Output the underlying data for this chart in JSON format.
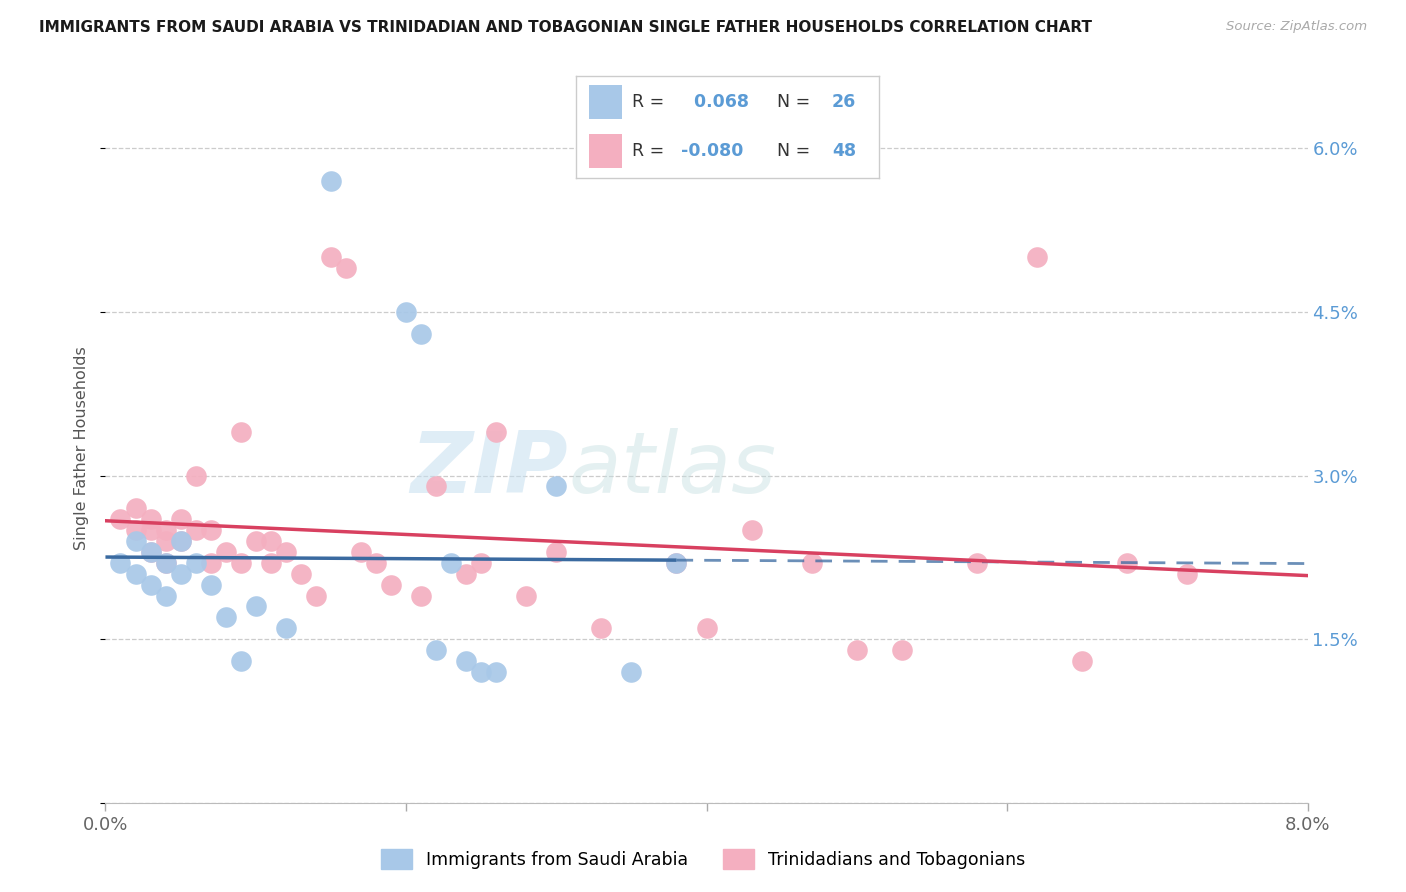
{
  "title": "IMMIGRANTS FROM SAUDI ARABIA VS TRINIDADIAN AND TOBAGONIAN SINGLE FATHER HOUSEHOLDS CORRELATION CHART",
  "source": "Source: ZipAtlas.com",
  "ylabel": "Single Father Households",
  "xlim": [
    0.0,
    0.08
  ],
  "ylim": [
    0.0,
    0.065
  ],
  "yticks": [
    0.0,
    0.015,
    0.03,
    0.045,
    0.06
  ],
  "ytick_labels": [
    "",
    "1.5%",
    "3.0%",
    "4.5%",
    "6.0%"
  ],
  "xticks": [
    0.0,
    0.02,
    0.04,
    0.06,
    0.08
  ],
  "xtick_labels": [
    "0.0%",
    "",
    "",
    "",
    "8.0%"
  ],
  "saudi_color": "#a8c8e8",
  "tnt_color": "#f4afc0",
  "saudi_line_color": "#3a6aa0",
  "tnt_line_color": "#d84060",
  "right_axis_color": "#5b9bd5",
  "saudi_R": "0.068",
  "saudi_N": "26",
  "tnt_R": "-0.080",
  "tnt_N": "48",
  "saudi_x": [
    0.001,
    0.002,
    0.002,
    0.003,
    0.003,
    0.004,
    0.004,
    0.005,
    0.005,
    0.006,
    0.007,
    0.008,
    0.009,
    0.01,
    0.012,
    0.015,
    0.02,
    0.021,
    0.022,
    0.023,
    0.024,
    0.025,
    0.026,
    0.03,
    0.035,
    0.038
  ],
  "saudi_y": [
    0.022,
    0.024,
    0.021,
    0.023,
    0.02,
    0.022,
    0.019,
    0.024,
    0.021,
    0.022,
    0.02,
    0.017,
    0.013,
    0.018,
    0.016,
    0.057,
    0.045,
    0.043,
    0.014,
    0.022,
    0.013,
    0.012,
    0.012,
    0.029,
    0.012,
    0.022
  ],
  "tnt_x": [
    0.001,
    0.002,
    0.002,
    0.003,
    0.003,
    0.003,
    0.004,
    0.004,
    0.004,
    0.005,
    0.005,
    0.006,
    0.006,
    0.007,
    0.007,
    0.008,
    0.009,
    0.009,
    0.01,
    0.011,
    0.011,
    0.012,
    0.013,
    0.014,
    0.015,
    0.016,
    0.017,
    0.018,
    0.019,
    0.021,
    0.022,
    0.024,
    0.025,
    0.026,
    0.028,
    0.03,
    0.033,
    0.038,
    0.04,
    0.043,
    0.047,
    0.05,
    0.053,
    0.058,
    0.062,
    0.065,
    0.068,
    0.072
  ],
  "tnt_y": [
    0.026,
    0.027,
    0.025,
    0.026,
    0.025,
    0.023,
    0.025,
    0.024,
    0.022,
    0.026,
    0.024,
    0.03,
    0.025,
    0.025,
    0.022,
    0.023,
    0.034,
    0.022,
    0.024,
    0.024,
    0.022,
    0.023,
    0.021,
    0.019,
    0.05,
    0.049,
    0.023,
    0.022,
    0.02,
    0.019,
    0.029,
    0.021,
    0.022,
    0.034,
    0.019,
    0.023,
    0.016,
    0.022,
    0.016,
    0.025,
    0.022,
    0.014,
    0.014,
    0.022,
    0.05,
    0.013,
    0.022,
    0.021
  ],
  "watermark_zip": "ZIP",
  "watermark_atlas": "atlas",
  "watermark_color_zip": "#c8dff0",
  "watermark_color_atlas": "#d0e8d8"
}
